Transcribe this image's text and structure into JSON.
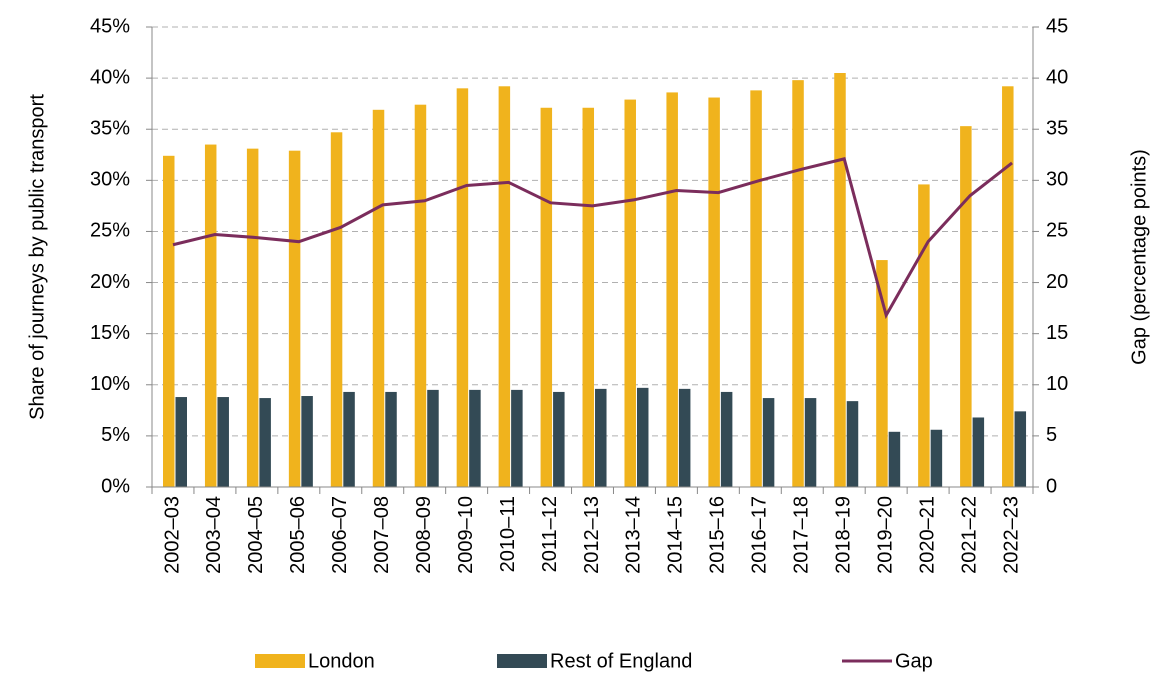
{
  "chart_data": {
    "type": "bar",
    "categories": [
      "2002–03",
      "2003–04",
      "2004–05",
      "2005–06",
      "2006–07",
      "2007–08",
      "2008–09",
      "2009–10",
      "2010–11",
      "2011–12",
      "2012–13",
      "2013–14",
      "2014–15",
      "2015–16",
      "2016–17",
      "2017–18",
      "2018–19",
      "2019–20",
      "2020–21",
      "2021–22",
      "2022–23"
    ],
    "series": [
      {
        "name": "London",
        "color": "#f0b31d",
        "type": "bar",
        "values": [
          32.4,
          33.5,
          33.1,
          32.9,
          34.7,
          36.9,
          37.4,
          39.0,
          39.2,
          37.1,
          37.1,
          37.9,
          38.6,
          38.1,
          38.8,
          39.8,
          40.5,
          22.2,
          29.6,
          35.3,
          39.2
        ]
      },
      {
        "name": "Rest of England",
        "color": "#334a55",
        "type": "bar",
        "values": [
          8.8,
          8.8,
          8.7,
          8.9,
          9.3,
          9.3,
          9.5,
          9.5,
          9.5,
          9.3,
          9.6,
          9.7,
          9.6,
          9.3,
          8.7,
          8.7,
          8.4,
          5.4,
          5.6,
          6.8,
          7.4
        ]
      },
      {
        "name": "Gap",
        "color": "#7b2d5c",
        "type": "line",
        "axis": "y2",
        "values": [
          23.7,
          24.7,
          24.4,
          24.0,
          25.4,
          27.6,
          28.0,
          29.5,
          29.8,
          27.8,
          27.5,
          28.1,
          29.0,
          28.8,
          30.0,
          31.1,
          32.1,
          16.8,
          24.0,
          28.5,
          31.7
        ]
      }
    ],
    "ylabel": "Share of journeys by public transport",
    "y2label": "Gap (percentage points)",
    "ylim": [
      0,
      45
    ],
    "yticks": [
      {
        "value": 0,
        "label": "0%"
      },
      {
        "value": 5,
        "label": "5%"
      },
      {
        "value": 10,
        "label": "10%"
      },
      {
        "value": 15,
        "label": "15%"
      },
      {
        "value": 20,
        "label": "20%"
      },
      {
        "value": 25,
        "label": "25%"
      },
      {
        "value": 30,
        "label": "30%"
      },
      {
        "value": 35,
        "label": "35%"
      },
      {
        "value": 40,
        "label": "40%"
      },
      {
        "value": 45,
        "label": "45%"
      }
    ],
    "y2lim": [
      0,
      45
    ],
    "y2ticks": [
      0,
      5,
      10,
      15,
      20,
      25,
      30,
      35,
      40,
      45
    ],
    "grid": true,
    "legend": "bottom"
  }
}
